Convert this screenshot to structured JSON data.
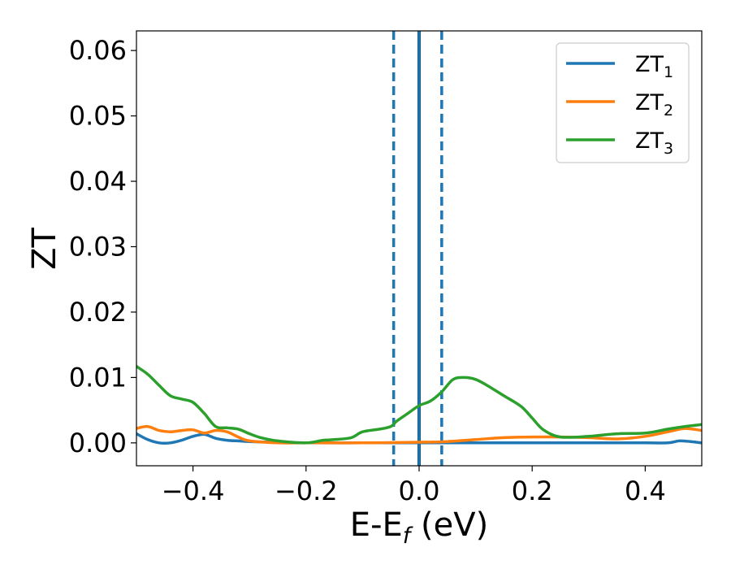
{
  "chart_data": {
    "type": "line",
    "xlabel_main": "E-E",
    "xlabel_sub": "f",
    "xlabel_unit": " (eV)",
    "ylabel": "ZT",
    "xlim": [
      -0.5,
      0.5
    ],
    "ylim": [
      -0.0035,
      0.063
    ],
    "xticks": [
      -0.4,
      -0.2,
      0.0,
      0.2,
      0.4
    ],
    "xtick_labels": [
      "−0.4",
      "−0.2",
      "0.0",
      "0.2",
      "0.4"
    ],
    "yticks": [
      0.0,
      0.01,
      0.02,
      0.03,
      0.04,
      0.05,
      0.06
    ],
    "ytick_labels": [
      "0.00",
      "0.01",
      "0.02",
      "0.03",
      "0.04",
      "0.05",
      "0.06"
    ],
    "grid": false,
    "legend_position": "top-right",
    "vlines": [
      {
        "x": -0.045,
        "style": "dashed",
        "color": "#1f77b4"
      },
      {
        "x": 0.0,
        "style": "solid",
        "color": "#000000"
      },
      {
        "x": 0.0,
        "style": "solid",
        "color": "#1f77b4"
      },
      {
        "x": 0.04,
        "style": "dashed",
        "color": "#1f77b4"
      }
    ],
    "series": [
      {
        "name": "ZT",
        "subscript": "1",
        "color": "#1f77b4",
        "x": [
          -0.5,
          -0.48,
          -0.46,
          -0.44,
          -0.42,
          -0.4,
          -0.38,
          -0.36,
          -0.34,
          -0.32,
          -0.3,
          -0.25,
          -0.2,
          -0.1,
          0.0,
          0.1,
          0.2,
          0.3,
          0.36,
          0.4,
          0.44,
          0.46,
          0.48,
          0.5
        ],
        "y": [
          0.0014,
          0.0005,
          0.0,
          0.0,
          0.0004,
          0.001,
          0.0013,
          0.0007,
          0.0004,
          0.0003,
          0.0002,
          0.0001,
          0.0,
          0.0,
          0.0,
          0.0,
          0.0,
          0.0,
          0.0,
          0.0,
          0.0,
          0.0003,
          0.0002,
          0.0
        ]
      },
      {
        "name": "ZT",
        "subscript": "2",
        "color": "#ff7f0e",
        "x": [
          -0.5,
          -0.48,
          -0.46,
          -0.44,
          -0.42,
          -0.4,
          -0.38,
          -0.36,
          -0.34,
          -0.32,
          -0.3,
          -0.25,
          -0.2,
          -0.1,
          0.0,
          0.05,
          0.1,
          0.15,
          0.2,
          0.25,
          0.3,
          0.35,
          0.4,
          0.44,
          0.47,
          0.5
        ],
        "y": [
          0.0022,
          0.0025,
          0.0019,
          0.0017,
          0.0019,
          0.002,
          0.0015,
          0.0019,
          0.0017,
          0.0009,
          0.0003,
          0.0,
          0.0,
          0.0,
          0.0001,
          0.0002,
          0.0005,
          0.0008,
          0.0009,
          0.0009,
          0.0008,
          0.0006,
          0.001,
          0.0017,
          0.0022,
          0.0019
        ]
      },
      {
        "name": "ZT",
        "subscript": "3",
        "color": "#2ca02c",
        "x": [
          -0.5,
          -0.48,
          -0.46,
          -0.44,
          -0.42,
          -0.4,
          -0.38,
          -0.36,
          -0.34,
          -0.32,
          -0.3,
          -0.28,
          -0.25,
          -0.2,
          -0.17,
          -0.15,
          -0.12,
          -0.1,
          -0.07,
          -0.05,
          -0.04,
          -0.02,
          0.0,
          0.02,
          0.04,
          0.06,
          0.08,
          0.1,
          0.12,
          0.15,
          0.18,
          0.2,
          0.22,
          0.25,
          0.3,
          0.35,
          0.4,
          0.44,
          0.47,
          0.5
        ],
        "y": [
          0.0117,
          0.0105,
          0.0088,
          0.0072,
          0.0067,
          0.0062,
          0.0045,
          0.0025,
          0.0023,
          0.0021,
          0.0014,
          0.0008,
          0.0003,
          0.0,
          0.0004,
          0.0005,
          0.0008,
          0.0017,
          0.0021,
          0.0025,
          0.0033,
          0.0045,
          0.0057,
          0.0064,
          0.0078,
          0.0097,
          0.01,
          0.0097,
          0.0088,
          0.0072,
          0.0056,
          0.0038,
          0.002,
          0.0009,
          0.001,
          0.0014,
          0.0015,
          0.0021,
          0.0025,
          0.0028
        ]
      }
    ]
  }
}
